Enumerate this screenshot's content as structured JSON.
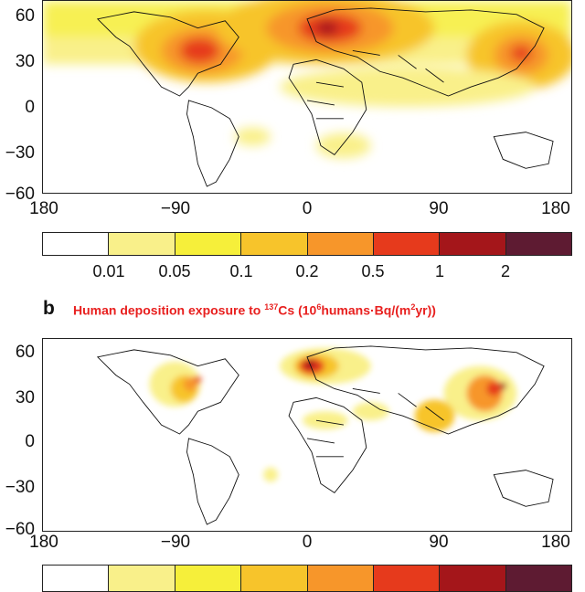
{
  "panel_b": {
    "letter": "b",
    "title_parts": [
      "Human deposition exposure to ",
      "137",
      "Cs (10",
      "6",
      "humans·Bq/(m",
      "2",
      "yr))"
    ]
  },
  "axes": {
    "lat_ticks": [
      "60",
      "30",
      "0",
      "−30",
      "−60"
    ],
    "lon_ticks": [
      "180",
      "−90",
      "0",
      "90",
      "180"
    ]
  },
  "colorbar": {
    "colors": [
      "#ffffff",
      "#f9f08a",
      "#f6ef3a",
      "#f7c42b",
      "#f7962a",
      "#e63a1c",
      "#a4161a",
      "#5e1b32"
    ],
    "tick_labels": [
      "0.01",
      "0.05",
      "0.1",
      "0.2",
      "0.5",
      "1",
      "2"
    ]
  }
}
